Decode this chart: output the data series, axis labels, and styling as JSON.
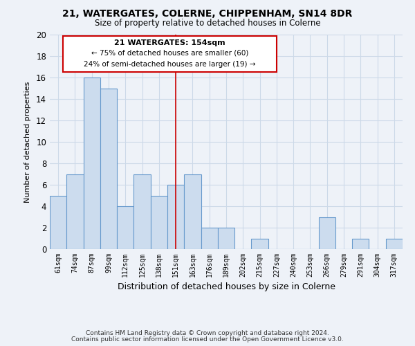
{
  "title": "21, WATERGATES, COLERNE, CHIPPENHAM, SN14 8DR",
  "subtitle": "Size of property relative to detached houses in Colerne",
  "xlabel": "Distribution of detached houses by size in Colerne",
  "ylabel": "Number of detached properties",
  "footer_line1": "Contains HM Land Registry data © Crown copyright and database right 2024.",
  "footer_line2": "Contains public sector information licensed under the Open Government Licence v3.0.",
  "bar_labels": [
    "61sqm",
    "74sqm",
    "87sqm",
    "99sqm",
    "112sqm",
    "125sqm",
    "138sqm",
    "151sqm",
    "163sqm",
    "176sqm",
    "189sqm",
    "202sqm",
    "215sqm",
    "227sqm",
    "240sqm",
    "253sqm",
    "266sqm",
    "279sqm",
    "291sqm",
    "304sqm",
    "317sqm"
  ],
  "bar_values": [
    5,
    7,
    16,
    15,
    4,
    7,
    5,
    6,
    7,
    2,
    2,
    0,
    1,
    0,
    0,
    0,
    3,
    0,
    1,
    0,
    1
  ],
  "bar_color": "#ccdcee",
  "bar_edge_color": "#6699cc",
  "grid_color": "#ccd9e8",
  "annotation_box_title": "21 WATERGATES: 154sqm",
  "annotation_line1": "← 75% of detached houses are smaller (60)",
  "annotation_line2": "24% of semi-detached houses are larger (19) →",
  "annotation_box_edge_color": "#cc0000",
  "annotation_line_color": "#cc0000",
  "property_line_x": 7.5,
  "ylim": [
    0,
    20
  ],
  "yticks": [
    0,
    2,
    4,
    6,
    8,
    10,
    12,
    14,
    16,
    18,
    20
  ],
  "background_color": "#eef2f8",
  "plot_background_color": "#eef2f8"
}
